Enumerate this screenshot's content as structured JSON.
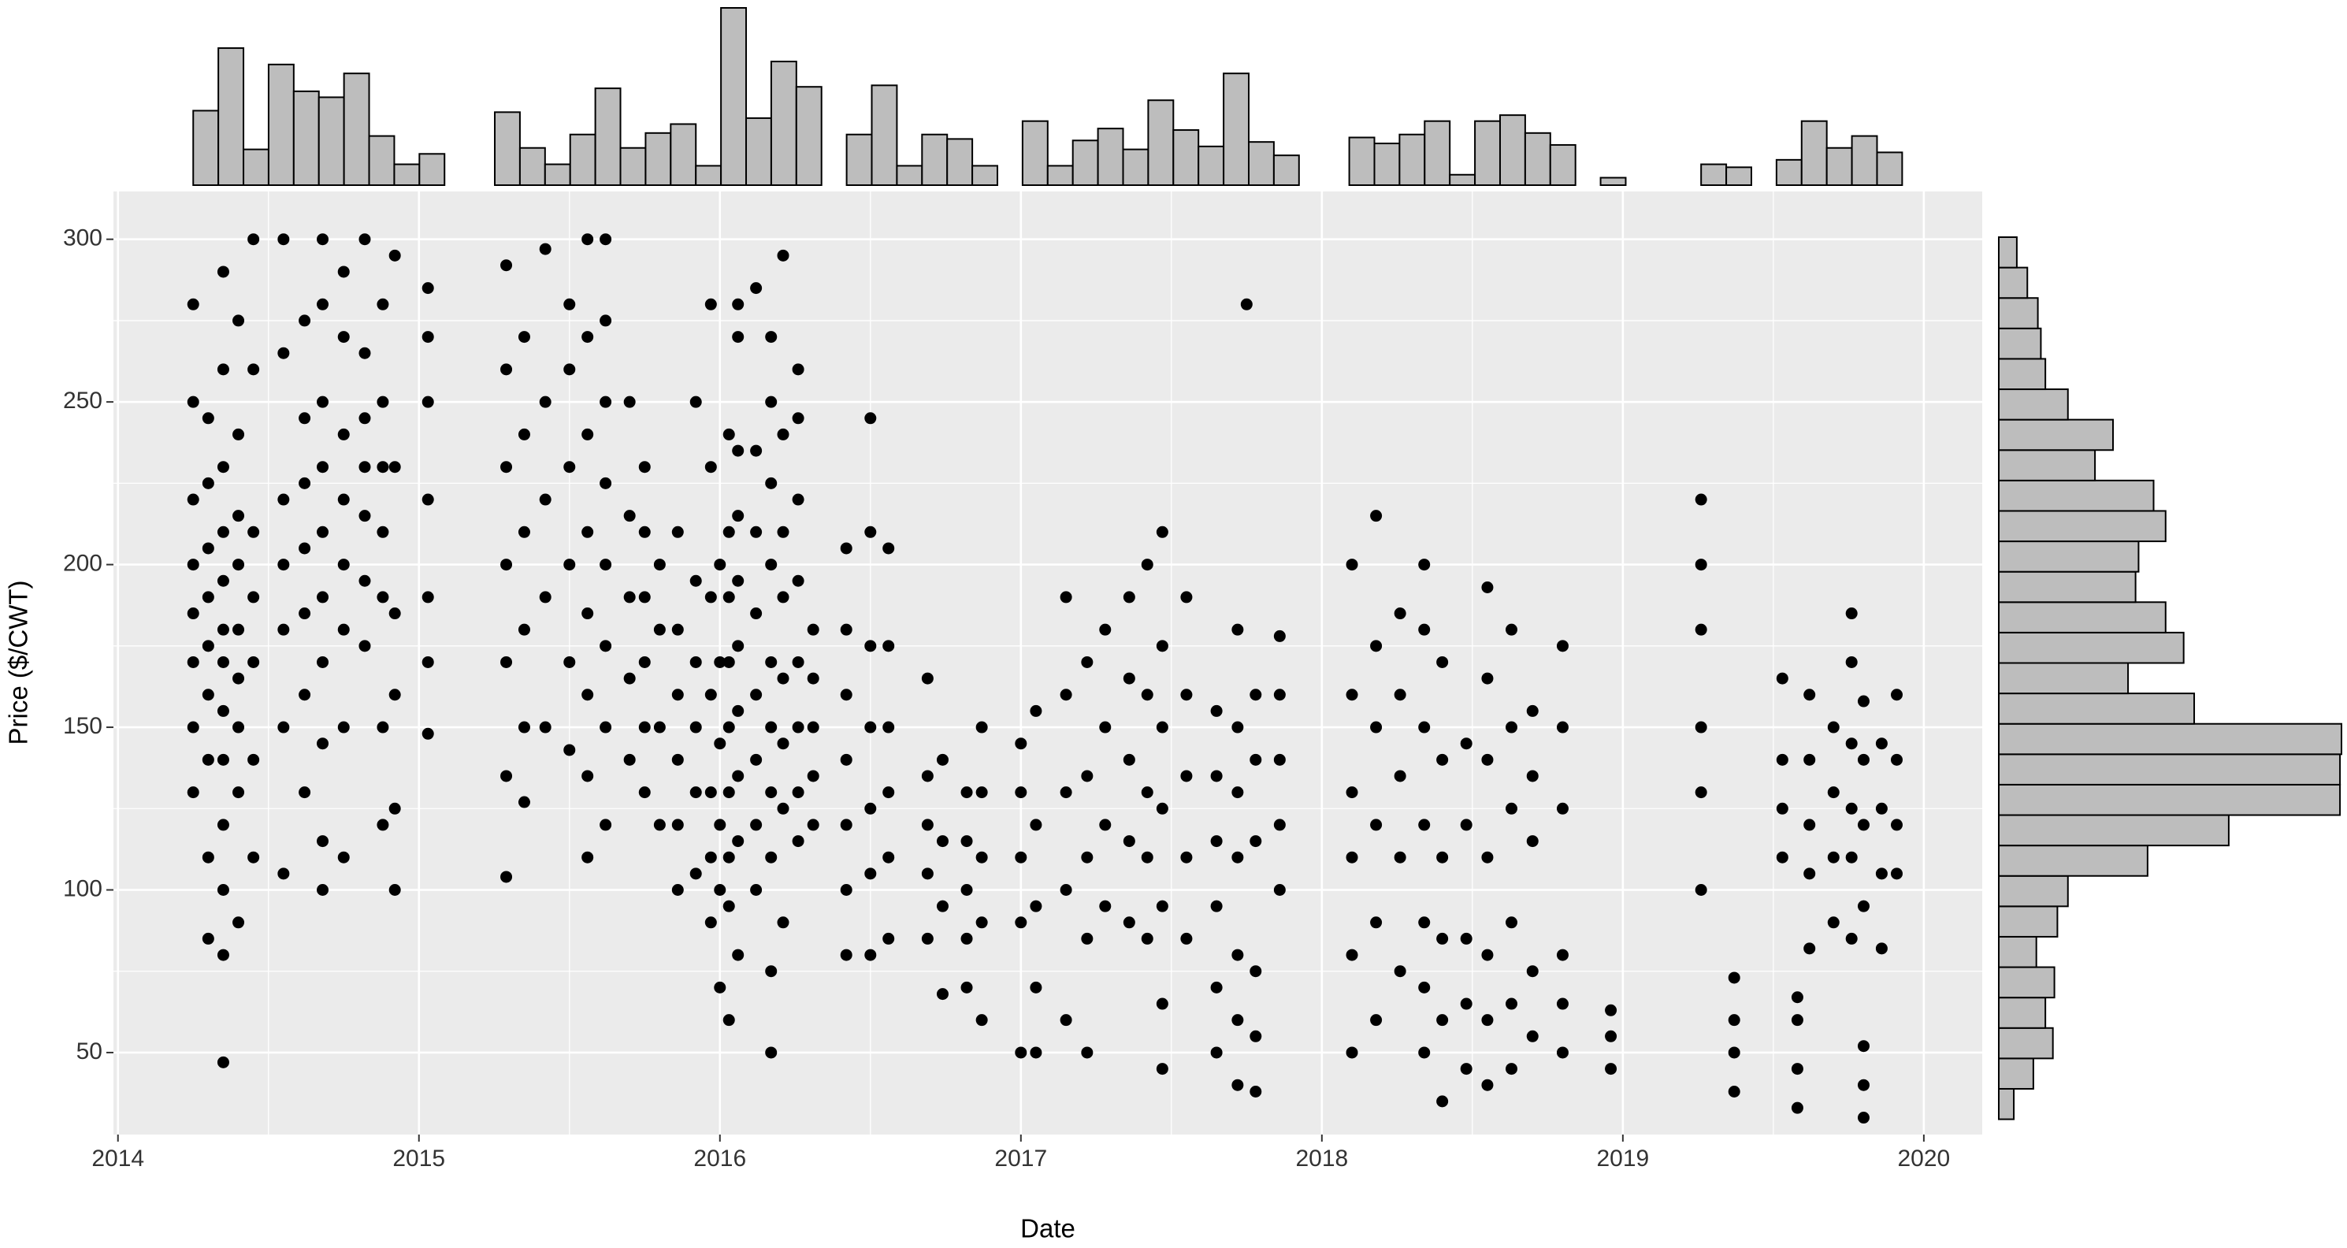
{
  "chart_data": [
    {
      "type": "scatter",
      "x_label": "Date",
      "y_label": "Price ($/CWT)",
      "color": "#000000",
      "grid": true,
      "xlim": [
        2013.985,
        2020.194
      ],
      "ylim": [
        24.8,
        314.7
      ],
      "xticks": [
        2014,
        2015,
        2016,
        2017,
        2018,
        2019,
        2020
      ],
      "yticks": [
        50,
        100,
        150,
        200,
        250,
        300
      ],
      "x": [
        2014.25,
        2014.25,
        2014.25,
        2014.25,
        2014.25,
        2014.25,
        2014.25,
        2014.25,
        2014.3,
        2014.3,
        2014.3,
        2014.3,
        2014.3,
        2014.3,
        2014.3,
        2014.3,
        2014.3,
        2014.35,
        2014.35,
        2014.35,
        2014.35,
        2014.35,
        2014.35,
        2014.35,
        2014.35,
        2014.35,
        2014.35,
        2014.35,
        2014.35,
        2014.35,
        2014.4,
        2014.4,
        2014.4,
        2014.4,
        2014.4,
        2014.4,
        2014.4,
        2014.4,
        2014.4,
        2014.45,
        2014.45,
        2014.45,
        2014.45,
        2014.45,
        2014.45,
        2014.45,
        2014.55,
        2014.55,
        2014.55,
        2014.55,
        2014.55,
        2014.55,
        2014.55,
        2014.62,
        2014.62,
        2014.62,
        2014.62,
        2014.62,
        2014.62,
        2014.62,
        2014.68,
        2014.68,
        2014.68,
        2014.68,
        2014.68,
        2014.68,
        2014.68,
        2014.68,
        2014.68,
        2014.68,
        2014.75,
        2014.75,
        2014.75,
        2014.75,
        2014.75,
        2014.75,
        2014.75,
        2014.75,
        2014.82,
        2014.82,
        2014.82,
        2014.82,
        2014.82,
        2014.82,
        2014.82,
        2014.88,
        2014.88,
        2014.88,
        2014.88,
        2014.88,
        2014.88,
        2014.88,
        2014.92,
        2014.92,
        2014.92,
        2014.92,
        2014.92,
        2014.92,
        2015.03,
        2015.03,
        2015.03,
        2015.03,
        2015.03,
        2015.03,
        2015.03,
        2015.29,
        2015.29,
        2015.29,
        2015.29,
        2015.29,
        2015.29,
        2015.29,
        2015.35,
        2015.35,
        2015.35,
        2015.35,
        2015.35,
        2015.35,
        2015.42,
        2015.42,
        2015.42,
        2015.42,
        2015.42,
        2015.5,
        2015.5,
        2015.5,
        2015.5,
        2015.5,
        2015.5,
        2015.56,
        2015.56,
        2015.56,
        2015.56,
        2015.56,
        2015.56,
        2015.56,
        2015.56,
        2015.62,
        2015.62,
        2015.62,
        2015.62,
        2015.62,
        2015.62,
        2015.62,
        2015.62,
        2015.7,
        2015.7,
        2015.7,
        2015.7,
        2015.7,
        2015.75,
        2015.75,
        2015.75,
        2015.75,
        2015.75,
        2015.75,
        2015.8,
        2015.8,
        2015.8,
        2015.8,
        2015.86,
        2015.86,
        2015.86,
        2015.86,
        2015.86,
        2015.86,
        2015.92,
        2015.92,
        2015.92,
        2015.92,
        2015.92,
        2015.92,
        2015.97,
        2015.97,
        2015.97,
        2015.97,
        2015.97,
        2015.97,
        2015.97,
        2016.0,
        2016.0,
        2016.0,
        2016.0,
        2016.0,
        2016.0,
        2016.03,
        2016.03,
        2016.03,
        2016.03,
        2016.03,
        2016.03,
        2016.03,
        2016.03,
        2016.03,
        2016.06,
        2016.06,
        2016.06,
        2016.06,
        2016.06,
        2016.06,
        2016.06,
        2016.06,
        2016.06,
        2016.06,
        2016.12,
        2016.12,
        2016.12,
        2016.12,
        2016.12,
        2016.12,
        2016.12,
        2016.12,
        2016.17,
        2016.17,
        2016.17,
        2016.17,
        2016.17,
        2016.17,
        2016.17,
        2016.17,
        2016.17,
        2016.17,
        2016.21,
        2016.21,
        2016.21,
        2016.21,
        2016.21,
        2016.21,
        2016.21,
        2016.21,
        2016.26,
        2016.26,
        2016.26,
        2016.26,
        2016.26,
        2016.26,
        2016.26,
        2016.26,
        2016.31,
        2016.31,
        2016.31,
        2016.31,
        2016.31,
        2016.42,
        2016.42,
        2016.42,
        2016.42,
        2016.42,
        2016.42,
        2016.42,
        2016.5,
        2016.5,
        2016.5,
        2016.5,
        2016.5,
        2016.5,
        2016.5,
        2016.56,
        2016.56,
        2016.56,
        2016.56,
        2016.56,
        2016.56,
        2016.69,
        2016.69,
        2016.69,
        2016.69,
        2016.69,
        2016.74,
        2016.74,
        2016.74,
        2016.74,
        2016.82,
        2016.82,
        2016.82,
        2016.82,
        2016.82,
        2016.87,
        2016.87,
        2016.87,
        2016.87,
        2016.87,
        2017.0,
        2017.0,
        2017.0,
        2017.0,
        2017.0,
        2017.05,
        2017.05,
        2017.05,
        2017.05,
        2017.05,
        2017.15,
        2017.15,
        2017.15,
        2017.15,
        2017.15,
        2017.22,
        2017.22,
        2017.22,
        2017.22,
        2017.22,
        2017.28,
        2017.28,
        2017.28,
        2017.28,
        2017.36,
        2017.36,
        2017.36,
        2017.36,
        2017.36,
        2017.42,
        2017.42,
        2017.42,
        2017.42,
        2017.42,
        2017.47,
        2017.47,
        2017.47,
        2017.47,
        2017.47,
        2017.47,
        2017.47,
        2017.55,
        2017.55,
        2017.55,
        2017.55,
        2017.55,
        2017.65,
        2017.65,
        2017.65,
        2017.65,
        2017.65,
        2017.65,
        2017.72,
        2017.72,
        2017.72,
        2017.72,
        2017.72,
        2017.72,
        2017.72,
        2017.75,
        2017.78,
        2017.78,
        2017.78,
        2017.78,
        2017.78,
        2017.78,
        2017.86,
        2017.86,
        2017.86,
        2017.86,
        2017.86,
        2018.1,
        2018.1,
        2018.1,
        2018.1,
        2018.1,
        2018.1,
        2018.18,
        2018.18,
        2018.18,
        2018.18,
        2018.18,
        2018.18,
        2018.26,
        2018.26,
        2018.26,
        2018.26,
        2018.26,
        2018.34,
        2018.34,
        2018.34,
        2018.34,
        2018.34,
        2018.34,
        2018.34,
        2018.4,
        2018.4,
        2018.4,
        2018.4,
        2018.4,
        2018.4,
        2018.48,
        2018.48,
        2018.48,
        2018.48,
        2018.48,
        2018.55,
        2018.55,
        2018.55,
        2018.55,
        2018.55,
        2018.55,
        2018.55,
        2018.63,
        2018.63,
        2018.63,
        2018.63,
        2018.63,
        2018.63,
        2018.7,
        2018.7,
        2018.7,
        2018.7,
        2018.7,
        2018.8,
        2018.8,
        2018.8,
        2018.8,
        2018.8,
        2018.8,
        2018.96,
        2018.96,
        2018.96,
        2019.26,
        2019.26,
        2019.26,
        2019.26,
        2019.26,
        2019.26,
        2019.37,
        2019.37,
        2019.37,
        2019.37,
        2019.53,
        2019.53,
        2019.53,
        2019.53,
        2019.58,
        2019.58,
        2019.58,
        2019.58,
        2019.62,
        2019.62,
        2019.62,
        2019.62,
        2019.62,
        2019.7,
        2019.7,
        2019.7,
        2019.7,
        2019.76,
        2019.76,
        2019.76,
        2019.76,
        2019.76,
        2019.76,
        2019.8,
        2019.8,
        2019.8,
        2019.8,
        2019.8,
        2019.8,
        2019.8,
        2019.86,
        2019.86,
        2019.86,
        2019.86,
        2019.91,
        2019.91,
        2019.91,
        2019.91
      ],
      "values": [
        130,
        150,
        170,
        185,
        200,
        220,
        250,
        280,
        85,
        110,
        140,
        160,
        175,
        190,
        205,
        225,
        245,
        47,
        80,
        100,
        120,
        140,
        155,
        170,
        180,
        195,
        210,
        230,
        260,
        290,
        90,
        130,
        150,
        165,
        180,
        200,
        215,
        240,
        275,
        110,
        140,
        170,
        190,
        210,
        260,
        300,
        105,
        150,
        180,
        200,
        220,
        265,
        300,
        130,
        160,
        185,
        205,
        225,
        245,
        275,
        100,
        115,
        145,
        170,
        190,
        210,
        230,
        250,
        280,
        300,
        110,
        150,
        180,
        200,
        220,
        240,
        270,
        290,
        175,
        195,
        215,
        230,
        245,
        265,
        300,
        120,
        150,
        190,
        210,
        230,
        250,
        280,
        100,
        125,
        160,
        185,
        230,
        295,
        148,
        170,
        190,
        220,
        250,
        270,
        285,
        104,
        135,
        170,
        200,
        230,
        260,
        292,
        127,
        150,
        180,
        210,
        240,
        270,
        150,
        190,
        220,
        250,
        297,
        143,
        170,
        200,
        230,
        260,
        280,
        110,
        135,
        160,
        185,
        210,
        240,
        270,
        300,
        120,
        150,
        175,
        200,
        225,
        250,
        275,
        300,
        140,
        165,
        190,
        215,
        250,
        130,
        150,
        170,
        190,
        210,
        230,
        120,
        150,
        180,
        200,
        100,
        120,
        140,
        160,
        180,
        210,
        105,
        130,
        150,
        170,
        195,
        250,
        90,
        110,
        130,
        160,
        190,
        230,
        280,
        70,
        100,
        120,
        145,
        170,
        200,
        60,
        95,
        110,
        130,
        150,
        170,
        190,
        210,
        240,
        80,
        115,
        135,
        155,
        175,
        195,
        215,
        235,
        270,
        280,
        100,
        120,
        140,
        160,
        185,
        210,
        235,
        285,
        50,
        75,
        110,
        130,
        150,
        170,
        200,
        225,
        250,
        270,
        90,
        125,
        145,
        165,
        190,
        210,
        240,
        295,
        115,
        130,
        150,
        170,
        195,
        220,
        245,
        260,
        120,
        135,
        150,
        165,
        180,
        80,
        100,
        120,
        140,
        160,
        180,
        205,
        80,
        105,
        125,
        150,
        175,
        210,
        245,
        85,
        110,
        130,
        150,
        175,
        205,
        85,
        105,
        120,
        135,
        165,
        68,
        95,
        115,
        140,
        70,
        85,
        100,
        115,
        130,
        60,
        90,
        110,
        130,
        150,
        50,
        90,
        110,
        130,
        145,
        50,
        70,
        95,
        120,
        155,
        60,
        100,
        130,
        160,
        190,
        50,
        85,
        110,
        135,
        170,
        95,
        120,
        150,
        180,
        90,
        115,
        140,
        165,
        190,
        85,
        110,
        130,
        160,
        200,
        45,
        65,
        95,
        125,
        150,
        175,
        210,
        85,
        110,
        135,
        160,
        190,
        50,
        70,
        95,
        115,
        135,
        155,
        40,
        60,
        80,
        110,
        130,
        150,
        180,
        280,
        38,
        55,
        75,
        115,
        140,
        160,
        100,
        120,
        140,
        160,
        178,
        50,
        80,
        110,
        130,
        160,
        200,
        60,
        90,
        120,
        150,
        175,
        215,
        75,
        110,
        135,
        160,
        185,
        50,
        70,
        90,
        120,
        150,
        180,
        200,
        35,
        60,
        85,
        110,
        140,
        170,
        45,
        65,
        85,
        120,
        145,
        40,
        60,
        80,
        110,
        140,
        165,
        193,
        45,
        65,
        90,
        125,
        150,
        180,
        55,
        75,
        115,
        135,
        155,
        50,
        65,
        80,
        125,
        150,
        175,
        45,
        55,
        63,
        100,
        130,
        150,
        180,
        200,
        220,
        38,
        50,
        60,
        73,
        110,
        125,
        140,
        165,
        33,
        45,
        60,
        67,
        82,
        105,
        120,
        140,
        160,
        90,
        110,
        130,
        150,
        85,
        110,
        125,
        145,
        170,
        185,
        30,
        40,
        52,
        95,
        120,
        140,
        158,
        82,
        105,
        125,
        145,
        105,
        120,
        140,
        160
      ]
    },
    {
      "type": "histogram",
      "orientation": "vertical",
      "color": "#bdbdbd",
      "bins": [
        2014.25,
        2014.3335,
        2014.417,
        2014.5005,
        2014.584,
        2014.6675,
        2014.751,
        2014.8345,
        2014.918,
        2015.0015,
        2015.085,
        2015.1685,
        2015.252,
        2015.3355,
        2015.419,
        2015.5025,
        2015.586,
        2015.6695,
        2015.753,
        2015.8365,
        2015.92,
        2016.0035,
        2016.087,
        2016.1705,
        2016.254,
        2016.3375,
        2016.421,
        2016.5045,
        2016.588,
        2016.6715,
        2016.755,
        2016.8385,
        2016.922,
        2017.0055,
        2017.089,
        2017.1725,
        2017.256,
        2017.3395,
        2017.423,
        2017.5065,
        2017.59,
        2017.6735,
        2017.757,
        2017.8405,
        2017.924,
        2018.0075,
        2018.091,
        2018.1745,
        2018.258,
        2018.3415,
        2018.425,
        2018.5085,
        2018.592,
        2018.6755,
        2018.759,
        2018.8425,
        2018.926,
        2019.0095,
        2019.093,
        2019.1765,
        2019.26,
        2019.3435,
        2019.427,
        2019.5105,
        2019.594,
        2019.6775,
        2019.761,
        2019.8445,
        2019.928
      ],
      "values": [
        50,
        92,
        24,
        81,
        63,
        59,
        75,
        33,
        14,
        21,
        0,
        0,
        49,
        25,
        14,
        34,
        65,
        25,
        35,
        41,
        13,
        119,
        45,
        83,
        66,
        0,
        34,
        67,
        13,
        34,
        31,
        13,
        0,
        43,
        13,
        30,
        38,
        24,
        57,
        37,
        26,
        75,
        29,
        20,
        0,
        0,
        32,
        28,
        34,
        43,
        7,
        43,
        47,
        35,
        27,
        0,
        5,
        0,
        0,
        0,
        14,
        12,
        0,
        17,
        43,
        25,
        33,
        22
      ]
    },
    {
      "type": "histogram",
      "orientation": "horizontal",
      "color": "#bdbdbd",
      "bins": [
        29.5,
        38.85,
        48.2,
        57.55,
        66.9,
        76.25,
        85.6,
        94.95,
        104.3,
        113.65,
        123,
        132.35,
        141.7,
        151.05,
        160.4,
        169.75,
        179.1,
        188.45,
        197.8,
        207.15,
        216.5,
        225.85,
        235.2,
        244.55,
        253.9,
        263.25,
        272.6,
        281.95,
        291.3,
        300.65
      ],
      "values": [
        10,
        23,
        36,
        31,
        37,
        25,
        39,
        46,
        99,
        153,
        227,
        227,
        228,
        130,
        86,
        123,
        111,
        91,
        93,
        111,
        103,
        64,
        76,
        46,
        31,
        28,
        26,
        19,
        12
      ]
    }
  ]
}
